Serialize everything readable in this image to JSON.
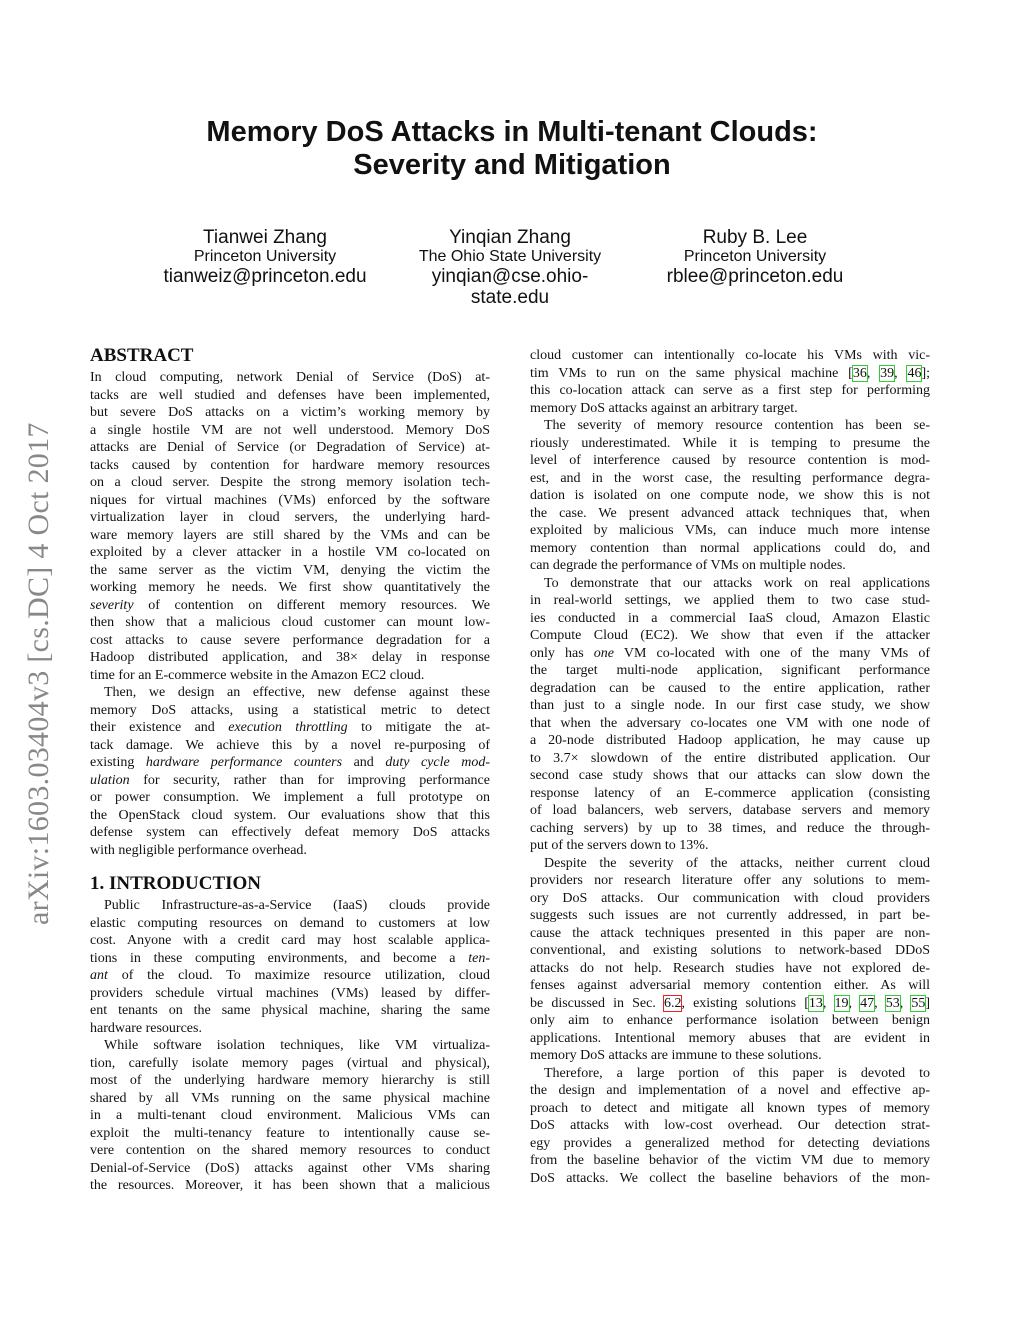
{
  "title": [
    "Memory DoS Attacks in Multi-tenant Clouds:",
    "Severity and Mitigation"
  ],
  "authors": [
    {
      "name": "Tianwei Zhang",
      "affiliation": "Princeton University",
      "email": [
        "tianweiz@princeton.edu"
      ]
    },
    {
      "name": "Yinqian Zhang",
      "affiliation": "The Ohio State University",
      "email": [
        "yinqian@cse.ohio-",
        "state.edu"
      ]
    },
    {
      "name": "Ruby B. Lee",
      "affiliation": "Princeton University",
      "email": [
        "rblee@princeton.edu"
      ]
    }
  ],
  "arxiv_stamp": "arXiv:1603.03404v3  [cs.DC]  4 Oct 2017",
  "colors": {
    "citation_box": "#33cc33",
    "section_ref_box": "#ee2222",
    "arxiv_stamp": "#888888"
  },
  "left_column": [
    {
      "heading": "ABSTRACT"
    },
    {
      "lines": [
        "In cloud computing, network Denial of Service (DoS) at-",
        "tacks are well studied and defenses have been implemented,",
        "but severe DoS attacks on a victim’s working memory by",
        "a single hostile VM are not well understood. Memory DoS",
        "attacks are Denial of Service (or Degradation of Service) at-",
        "tacks caused by contention for hardware memory resources",
        "on a cloud server. Despite the strong memory isolation tech-",
        "niques for virtual machines (VMs) enforced by the software",
        "virtualization layer in cloud servers, the underlying hard-",
        "ware memory layers are still shared by the VMs and can be",
        "exploited by a clever attacker in a hostile VM co-located on",
        "the same server as the victim VM, denying the victim the",
        "working memory he needs. We first show quantitatively the",
        [
          {
            "t": "severity",
            "s": "i"
          },
          " of contention on different memory resources. We"
        ],
        "then show that a malicious cloud customer can mount low-",
        "cost attacks to cause severe performance degradation for a",
        "Hadoop distributed application, and 38× delay in response",
        "time for an E-commerce website in the Amazon EC2 cloud."
      ]
    },
    {
      "indent": true,
      "lines": [
        "Then, we design an effective, new defense against these",
        "memory DoS attacks, using a statistical metric to detect",
        [
          "their existence and ",
          {
            "t": "execution throttling",
            "s": "i"
          },
          " to mitigate the at-"
        ],
        "tack damage. We achieve this by a novel re-purposing of",
        [
          "existing ",
          {
            "t": "hardware performance counters",
            "s": "i"
          },
          " and ",
          {
            "t": "duty cycle mod-",
            "s": "i"
          }
        ],
        [
          {
            "t": "ulation",
            "s": "i"
          },
          " for security, rather than for improving performance"
        ],
        "or power consumption. We implement a full prototype on",
        "the OpenStack cloud system. Our evaluations show that this",
        "defense system can effectively defeat memory DoS attacks",
        "with negligible performance overhead."
      ]
    },
    {
      "heading": "1.   INTRODUCTION"
    },
    {
      "indent": true,
      "lines": [
        "Public Infrastructure-as-a-Service (IaaS) clouds provide",
        "elastic computing resources on demand to customers at low",
        "cost. Anyone with a credit card may host scalable applica-",
        [
          "tions in these computing environments, and become a ",
          {
            "t": "ten-",
            "s": "i"
          }
        ],
        [
          {
            "t": "ant",
            "s": "i"
          },
          " of the cloud. To maximize resource utilization, cloud"
        ],
        "providers schedule virtual machines (VMs) leased by differ-",
        "ent tenants on the same physical machine, sharing the same",
        "hardware resources."
      ]
    },
    {
      "indent": true,
      "continues": true,
      "lines": [
        "While software isolation techniques, like VM virtualiza-",
        "tion, carefully isolate memory pages (virtual and physical),",
        "most of the underlying hardware memory hierarchy is still",
        "shared by all VMs running on the same physical machine",
        "in a multi-tenant cloud environment. Malicious VMs can",
        "exploit the multi-tenancy feature to intentionally cause se-",
        "vere contention on the shared memory resources to conduct",
        "Denial-of-Service (DoS) attacks against other VMs sharing",
        "the resources. Moreover, it has been shown that a malicious"
      ]
    }
  ],
  "right_column": [
    {
      "lines": [
        "cloud customer can intentionally co-locate his VMs with vic-",
        [
          "tim VMs to run on the same physical machine [",
          {
            "t": "36",
            "s": "g"
          },
          ", ",
          {
            "t": "39",
            "s": "g"
          },
          ", ",
          {
            "t": "46",
            "s": "g"
          },
          "];"
        ],
        "this co-location attack can serve as a first step for performing",
        "memory DoS attacks against an arbitrary target."
      ]
    },
    {
      "indent": true,
      "lines": [
        "The severity of memory resource contention has been se-",
        "riously underestimated. While it is temping to presume the",
        "level of interference caused by resource contention is mod-",
        "est, and in the worst case, the resulting performance degra-",
        "dation is isolated on one compute node, we show this is not",
        "the case. We present advanced attack techniques that, when",
        "exploited by malicious VMs, can induce much more intense",
        "memory contention than normal applications could do, and",
        "can degrade the performance of VMs on multiple nodes."
      ]
    },
    {
      "indent": true,
      "lines": [
        "To demonstrate that our attacks work on real applications",
        "in real-world settings, we applied them to two case stud-",
        "ies conducted in a commercial IaaS cloud, Amazon Elastic",
        "Compute Cloud (EC2). We show that even if the attacker",
        [
          "only has ",
          {
            "t": "one",
            "s": "i"
          },
          " VM co-located with one of the many VMs of"
        ],
        "the target multi-node application, significant performance",
        "degradation can be caused to the entire application, rather",
        "than just to a single node. In our first case study, we show",
        "that when the adversary co-locates one VM with one node of",
        "a 20-node distributed Hadoop application, he may cause up",
        "to 3.7× slowdown of the entire distributed application. Our",
        "second case study shows that our attacks can slow down the",
        "response latency of an E-commerce application (consisting",
        "of load balancers, web servers, database servers and memory",
        "caching servers) by up to 38 times, and reduce the through-",
        "put of the servers down to 13%."
      ]
    },
    {
      "indent": true,
      "lines": [
        "Despite the severity of the attacks, neither current cloud",
        "providers nor research literature offer any solutions to mem-",
        "ory DoS attacks. Our communication with cloud providers",
        "suggests such issues are not currently addressed, in part be-",
        "cause the attack techniques presented in this paper are non-",
        "conventional, and existing solutions to network-based DDoS",
        "attacks do not help. Research studies have not explored de-",
        "fenses against adversarial memory contention either. As will",
        [
          "be discussed in Sec. ",
          {
            "t": "6.2",
            "s": "r"
          },
          ", existing solutions [",
          {
            "t": "13",
            "s": "g"
          },
          ", ",
          {
            "t": "19",
            "s": "g"
          },
          ", ",
          {
            "t": "47",
            "s": "g"
          },
          ", ",
          {
            "t": "53",
            "s": "g"
          },
          ", ",
          {
            "t": "55",
            "s": "g"
          },
          "]"
        ],
        "only aim to enhance performance isolation between benign",
        "applications. Intentional memory abuses that are evident in",
        "memory DoS attacks are immune to these solutions."
      ]
    },
    {
      "indent": true,
      "continues": true,
      "lines": [
        "Therefore, a large portion of this paper is devoted to",
        "the design and implementation of a novel and effective ap-",
        "proach to detect and mitigate all known types of memory",
        "DoS attacks with low-cost overhead. Our detection strat-",
        "egy provides a generalized method for detecting deviations",
        "from the baseline behavior of the victim VM due to memory",
        "DoS attacks. We collect the baseline behaviors of the mon-"
      ]
    }
  ]
}
